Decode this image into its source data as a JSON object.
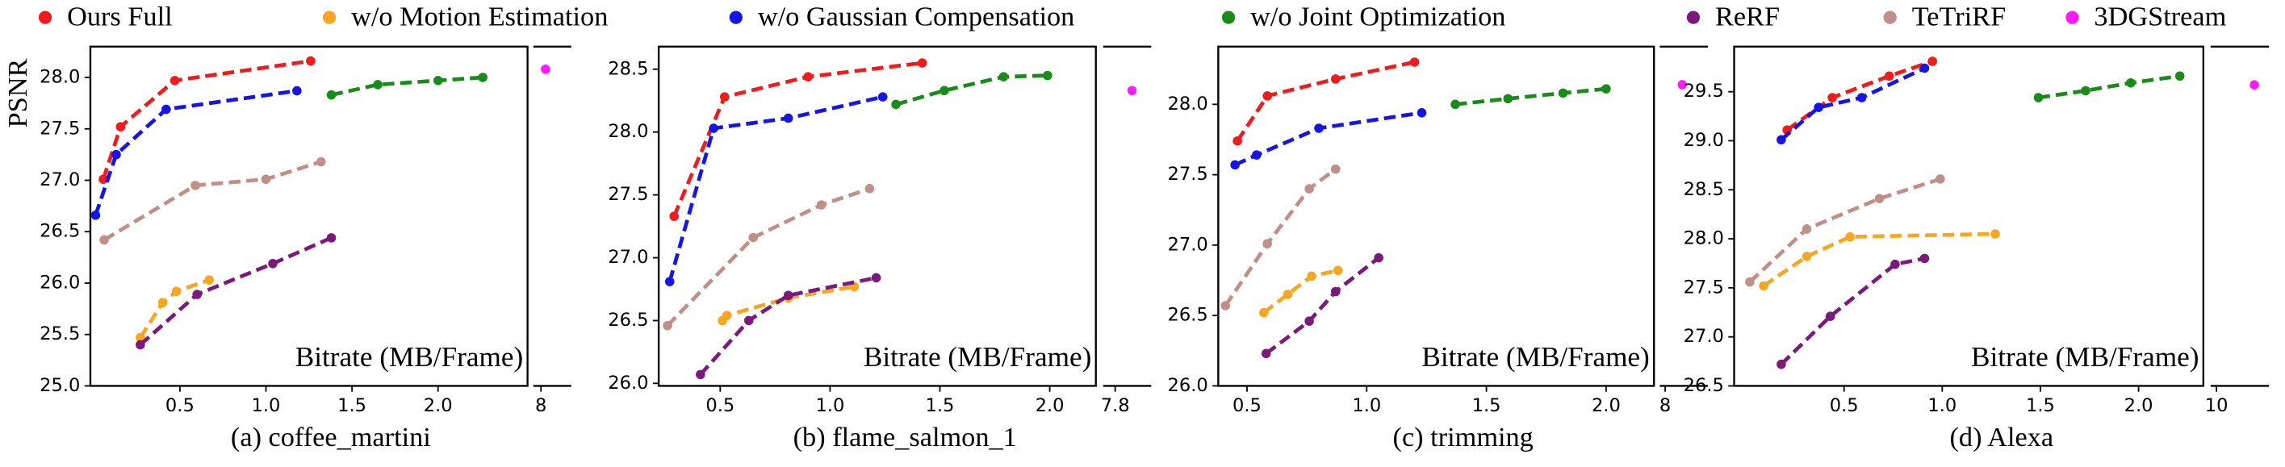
{
  "chart_data": [
    {
      "type": "line",
      "caption": "(a) coffee_martini",
      "xlabel": "Bitrate (MB/Frame)",
      "ylabel": "PSNR",
      "xlim": [
        -0.02,
        2.52
      ],
      "xticks": [
        0.5,
        {
          "value": 1,
          "label": "1.0"
        },
        1.5,
        {
          "value": 2,
          "label": "2.0"
        }
      ],
      "x2lim": [
        7.9,
        8.4
      ],
      "x2ticks": [
        8
      ],
      "ylim": [
        25.0,
        28.3
      ],
      "yticks": [
        {
          "value": 25,
          "label": "25.0"
        },
        25.5,
        {
          "value": 26,
          "label": "26.0"
        },
        26.5,
        {
          "value": 27,
          "label": "27.0"
        },
        27.5,
        {
          "value": 28,
          "label": "28.0"
        }
      ],
      "series": [
        {
          "name": "Ours Full",
          "color": "#ee1c1c",
          "x": [
            0.055,
            0.155,
            0.47,
            1.26
          ],
          "values": [
            27.01,
            27.52,
            27.97,
            28.16
          ]
        },
        {
          "name": "w/o Motion Estimation",
          "color": "#f5a623",
          "x": [
            0.27,
            0.4,
            0.48,
            0.67
          ],
          "values": [
            25.47,
            25.81,
            25.92,
            26.03
          ]
        },
        {
          "name": "w/o Gaussian Compensation",
          "color": "#1515e6",
          "x": [
            0.01,
            0.13,
            0.42,
            1.18
          ],
          "values": [
            26.66,
            27.25,
            27.69,
            27.87
          ]
        },
        {
          "name": "w/o Joint Optimization",
          "color": "#1a8a1a",
          "x": [
            1.38,
            1.65,
            2.0,
            2.26
          ],
          "values": [
            27.83,
            27.93,
            27.97,
            28.0
          ]
        },
        {
          "name": "ReRF",
          "color": "#7b1a7b",
          "x": [
            0.27,
            0.6,
            1.04,
            1.38
          ],
          "values": [
            25.4,
            25.89,
            26.19,
            26.44
          ]
        },
        {
          "name": "TeTriRF",
          "color": "#c09088",
          "x": [
            0.06,
            0.59,
            1.0,
            1.32
          ],
          "values": [
            26.42,
            26.95,
            27.01,
            27.18
          ]
        },
        {
          "name": "3DGStream",
          "color": "#ff1aff",
          "xaxis": "x2",
          "x": [
            8.06
          ],
          "values": [
            28.08
          ]
        }
      ]
    },
    {
      "type": "line",
      "caption": "(b) flame_salmon_1",
      "xlabel": "Bitrate (MB/Frame)",
      "xlim": [
        0.22,
        2.21
      ],
      "xticks": [
        0.5,
        {
          "value": 1,
          "label": "1.0"
        },
        1.5,
        {
          "value": 2,
          "label": "2.0"
        }
      ],
      "x2lim": [
        7.75,
        7.95
      ],
      "x2ticks": [
        7.8
      ],
      "ylim": [
        25.98,
        28.68
      ],
      "yticks": [
        {
          "value": 26,
          "label": "26.0"
        },
        26.5,
        {
          "value": 27,
          "label": "27.0"
        },
        27.5,
        {
          "value": 28,
          "label": "28.0"
        },
        28.5
      ],
      "series": [
        {
          "x": [
            0.29,
            0.52,
            0.9,
            1.42
          ],
          "values": [
            27.33,
            28.28,
            28.44,
            28.55
          ]
        },
        {
          "x": [
            0.51,
            0.53,
            0.81,
            1.11
          ],
          "values": [
            26.5,
            26.54,
            26.68,
            26.77
          ]
        },
        {
          "x": [
            0.27,
            0.47,
            0.81,
            1.24
          ],
          "values": [
            26.81,
            28.03,
            28.11,
            28.28
          ]
        },
        {
          "x": [
            1.3,
            1.52,
            1.79,
            1.99
          ],
          "values": [
            28.22,
            28.33,
            28.44,
            28.45
          ]
        },
        {
          "x": [
            0.41,
            0.63,
            0.81,
            1.21
          ],
          "values": [
            26.07,
            26.5,
            26.7,
            26.84
          ]
        },
        {
          "x": [
            0.26,
            0.65,
            0.96,
            1.18
          ],
          "values": [
            26.46,
            27.16,
            27.42,
            27.55
          ]
        },
        {
          "xaxis": "x2",
          "x": [
            7.87
          ],
          "values": [
            28.33
          ]
        }
      ]
    },
    {
      "type": "line",
      "caption": "(c) trimming",
      "xlabel": "Bitrate (MB/Frame)",
      "xlim": [
        0.38,
        2.2
      ],
      "xticks": [
        0.5,
        {
          "value": 1,
          "label": "1.0"
        },
        1.5,
        {
          "value": 2,
          "label": "2.0"
        }
      ],
      "x2lim": [
        7.95,
        8.4
      ],
      "x2ticks": [
        8
      ],
      "ylim": [
        26.0,
        28.41
      ],
      "yticks": [
        {
          "value": 26,
          "label": "26.0"
        },
        26.5,
        {
          "value": 27,
          "label": "27.0"
        },
        27.5,
        {
          "value": 28,
          "label": "28.0"
        }
      ],
      "series": [
        {
          "x": [
            0.46,
            0.585,
            0.87,
            1.2
          ],
          "values": [
            27.74,
            28.06,
            28.18,
            28.3
          ]
        },
        {
          "x": [
            0.57,
            0.67,
            0.77,
            0.88
          ],
          "values": [
            26.52,
            26.65,
            26.78,
            26.82
          ]
        },
        {
          "x": [
            0.45,
            0.54,
            0.8,
            1.23
          ],
          "values": [
            27.57,
            27.64,
            27.83,
            27.94
          ]
        },
        {
          "x": [
            1.37,
            1.59,
            1.82,
            2.0
          ],
          "values": [
            28.0,
            28.04,
            28.08,
            28.11
          ]
        },
        {
          "x": [
            0.58,
            0.76,
            0.87,
            1.05
          ],
          "values": [
            26.23,
            26.46,
            26.67,
            26.91
          ]
        },
        {
          "x": [
            0.41,
            0.585,
            0.76,
            0.87
          ],
          "values": [
            26.57,
            27.01,
            27.4,
            27.54
          ]
        },
        {
          "xaxis": "x2",
          "x": [
            8.16
          ],
          "values": [
            28.14
          ]
        }
      ]
    },
    {
      "type": "line",
      "caption": "(d) Alexa",
      "xlabel": "Bitrate (MB/Frame)",
      "xlim": [
        -0.06,
        2.33
      ],
      "xticks": [
        0.5,
        {
          "value": 1,
          "label": "1.0"
        },
        1.5,
        {
          "value": 2,
          "label": "2.0"
        }
      ],
      "x2lim": [
        9.8,
        11.8
      ],
      "x2ticks": [
        10
      ],
      "ylim": [
        26.5,
        29.96
      ],
      "yticks": [
        26.5,
        {
          "value": 27,
          "label": "27.0"
        },
        27.5,
        {
          "value": 28,
          "label": "28.0"
        },
        28.5,
        {
          "value": 29,
          "label": "29.0"
        },
        29.5
      ],
      "series": [
        {
          "x": [
            0.21,
            0.44,
            0.73,
            0.95
          ],
          "values": [
            29.11,
            29.44,
            29.66,
            29.81
          ]
        },
        {
          "x": [
            0.09,
            0.31,
            0.53,
            1.27
          ],
          "values": [
            27.52,
            27.82,
            28.02,
            28.05
          ]
        },
        {
          "x": [
            0.18,
            0.37,
            0.59,
            0.91
          ],
          "values": [
            29.01,
            29.34,
            29.44,
            29.74
          ]
        },
        {
          "x": [
            1.49,
            1.73,
            1.96,
            2.21
          ],
          "values": [
            29.44,
            29.51,
            29.59,
            29.66
          ]
        },
        {
          "x": [
            0.18,
            0.43,
            0.76,
            0.91
          ],
          "values": [
            26.72,
            27.21,
            27.74,
            27.8
          ]
        },
        {
          "x": [
            0.02,
            0.31,
            0.68,
            0.99
          ],
          "values": [
            27.56,
            28.1,
            28.41,
            28.61
          ]
        },
        {
          "xaxis": "x2",
          "x": [
            11.3
          ],
          "values": [
            29.57
          ]
        }
      ]
    }
  ]
}
